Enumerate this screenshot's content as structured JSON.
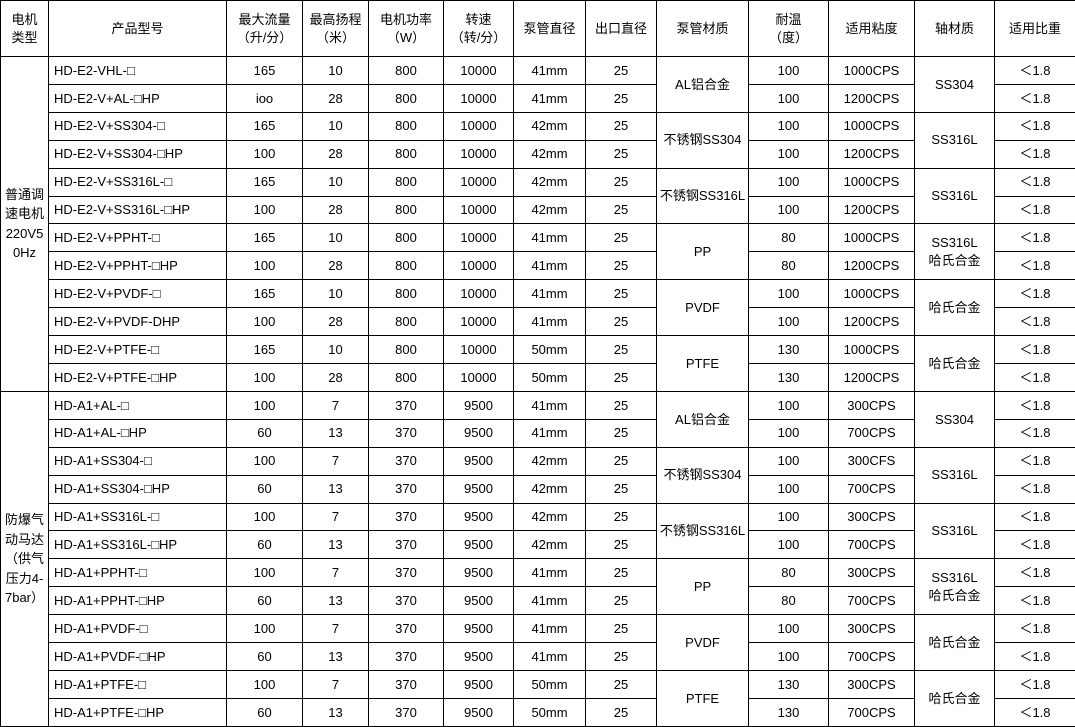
{
  "table": {
    "headers": [
      "电机\n类型",
      "产品型号",
      "最大流量\n（升/分）",
      "最高扬程\n（米）",
      "电机功率\n（W）",
      "转速\n（转/分）",
      "泵管直径",
      "出口直径",
      "泵管材质",
      "耐温\n（度）",
      "适用粘度",
      "轴材质",
      "适用比重"
    ],
    "rows": [
      [
        {
          "t": "普通调速电机220V50Hz",
          "rs": 12
        },
        {
          "t": "HD-E2-VHL-□",
          "a": "l"
        },
        {
          "t": "165"
        },
        {
          "t": "10"
        },
        {
          "t": "800"
        },
        {
          "t": "10000"
        },
        {
          "t": "41mm"
        },
        {
          "t": "25"
        },
        {
          "t": "AL铝合金",
          "rs": 2
        },
        {
          "t": "100"
        },
        {
          "t": "1000CPS"
        },
        {
          "t": "SS304",
          "rs": 2
        },
        {
          "t": "＜1.8"
        }
      ],
      [
        {
          "t": "HD-E2-V+AL-□HP",
          "a": "l"
        },
        {
          "t": "ioo"
        },
        {
          "t": "28"
        },
        {
          "t": "800"
        },
        {
          "t": "10000"
        },
        {
          "t": "41mm"
        },
        {
          "t": "25"
        },
        {
          "t": "100"
        },
        {
          "t": "1200CPS"
        },
        {
          "t": "＜1.8"
        }
      ],
      [
        {
          "t": "HD-E2-V+SS304-□",
          "a": "l"
        },
        {
          "t": "165"
        },
        {
          "t": "10"
        },
        {
          "t": "800"
        },
        {
          "t": "10000"
        },
        {
          "t": "42mm"
        },
        {
          "t": "25"
        },
        {
          "t": "不锈钢SS304",
          "rs": 2
        },
        {
          "t": "100"
        },
        {
          "t": "1000CPS"
        },
        {
          "t": "SS316L",
          "rs": 2
        },
        {
          "t": "＜1.8"
        }
      ],
      [
        {
          "t": "HD-E2-V+SS304-□HP",
          "a": "l"
        },
        {
          "t": "100"
        },
        {
          "t": "28"
        },
        {
          "t": "800"
        },
        {
          "t": "10000"
        },
        {
          "t": "42mm"
        },
        {
          "t": "25"
        },
        {
          "t": "100"
        },
        {
          "t": "1200CPS"
        },
        {
          "t": "＜1.8"
        }
      ],
      [
        {
          "t": "HD-E2-V+SS316L-□",
          "a": "l"
        },
        {
          "t": "165"
        },
        {
          "t": "10"
        },
        {
          "t": "800"
        },
        {
          "t": "10000"
        },
        {
          "t": "42mm"
        },
        {
          "t": "25"
        },
        {
          "t": "不锈钢SS316L",
          "rs": 2
        },
        {
          "t": "100"
        },
        {
          "t": "1000CPS"
        },
        {
          "t": "SS316L",
          "rs": 2
        },
        {
          "t": "＜1.8"
        }
      ],
      [
        {
          "t": "HD-E2-V+SS316L-□HP",
          "a": "l"
        },
        {
          "t": "100"
        },
        {
          "t": "28"
        },
        {
          "t": "800"
        },
        {
          "t": "10000"
        },
        {
          "t": "42mm"
        },
        {
          "t": "25"
        },
        {
          "t": "100"
        },
        {
          "t": "1200CPS"
        },
        {
          "t": "＜1.8"
        }
      ],
      [
        {
          "t": "HD-E2-V+PPHT-□",
          "a": "l"
        },
        {
          "t": "165"
        },
        {
          "t": "10"
        },
        {
          "t": "800"
        },
        {
          "t": "10000"
        },
        {
          "t": "41mm"
        },
        {
          "t": "25"
        },
        {
          "t": "PP",
          "rs": 2
        },
        {
          "t": "80"
        },
        {
          "t": "1000CPS"
        },
        {
          "t": "SS316L\n哈氏合金",
          "rs": 2
        },
        {
          "t": "＜1.8"
        }
      ],
      [
        {
          "t": "HD-E2-V+PPHT-□HP",
          "a": "l"
        },
        {
          "t": "100"
        },
        {
          "t": "28"
        },
        {
          "t": "800"
        },
        {
          "t": "10000"
        },
        {
          "t": "41mm"
        },
        {
          "t": "25"
        },
        {
          "t": "80"
        },
        {
          "t": "1200CPS"
        },
        {
          "t": "＜1.8"
        }
      ],
      [
        {
          "t": "HD-E2-V+PVDF-□",
          "a": "l"
        },
        {
          "t": "165"
        },
        {
          "t": "10"
        },
        {
          "t": "800"
        },
        {
          "t": "10000"
        },
        {
          "t": "41mm"
        },
        {
          "t": "25"
        },
        {
          "t": "PVDF",
          "rs": 2
        },
        {
          "t": "100"
        },
        {
          "t": "1000CPS"
        },
        {
          "t": "哈氏合金",
          "rs": 2
        },
        {
          "t": "＜1.8"
        }
      ],
      [
        {
          "t": "HD-E2-V+PVDF-DHP",
          "a": "l"
        },
        {
          "t": "100"
        },
        {
          "t": "28"
        },
        {
          "t": "800"
        },
        {
          "t": "10000"
        },
        {
          "t": "41mm"
        },
        {
          "t": "25"
        },
        {
          "t": "100"
        },
        {
          "t": "1200CPS"
        },
        {
          "t": "＜1.8"
        }
      ],
      [
        {
          "t": "HD-E2-V+PTFE-□",
          "a": "l"
        },
        {
          "t": "165"
        },
        {
          "t": "10"
        },
        {
          "t": "800"
        },
        {
          "t": "10000"
        },
        {
          "t": "50mm"
        },
        {
          "t": "25"
        },
        {
          "t": "PTFE",
          "rs": 2
        },
        {
          "t": "130"
        },
        {
          "t": "1000CPS"
        },
        {
          "t": "哈氏合金",
          "rs": 2
        },
        {
          "t": "＜1.8"
        }
      ],
      [
        {
          "t": "HD-E2-V+PTFE-□HP",
          "a": "l"
        },
        {
          "t": "100"
        },
        {
          "t": "28"
        },
        {
          "t": "800"
        },
        {
          "t": "10000"
        },
        {
          "t": "50mm"
        },
        {
          "t": "25"
        },
        {
          "t": "130"
        },
        {
          "t": "1200CPS"
        },
        {
          "t": "＜1.8"
        }
      ],
      [
        {
          "t": "防爆气动马达（供气压力4-7bar）",
          "rs": 12
        },
        {
          "t": "HD-A1+AL-□",
          "a": "l"
        },
        {
          "t": "100"
        },
        {
          "t": "7"
        },
        {
          "t": "370"
        },
        {
          "t": "9500"
        },
        {
          "t": "41mm"
        },
        {
          "t": "25"
        },
        {
          "t": "AL铝合金",
          "rs": 2
        },
        {
          "t": "100"
        },
        {
          "t": "300CPS"
        },
        {
          "t": "SS304",
          "rs": 2
        },
        {
          "t": "＜1.8"
        }
      ],
      [
        {
          "t": "HD-A1+AL-□HP",
          "a": "l"
        },
        {
          "t": "60"
        },
        {
          "t": "13"
        },
        {
          "t": "370"
        },
        {
          "t": "9500"
        },
        {
          "t": "41mm"
        },
        {
          "t": "25"
        },
        {
          "t": "100"
        },
        {
          "t": "700CPS"
        },
        {
          "t": "＜1.8"
        }
      ],
      [
        {
          "t": "HD-A1+SS304-□",
          "a": "l"
        },
        {
          "t": "100"
        },
        {
          "t": "7"
        },
        {
          "t": "370"
        },
        {
          "t": "9500"
        },
        {
          "t": "42mm"
        },
        {
          "t": "25"
        },
        {
          "t": "不锈钢SS304",
          "rs": 2
        },
        {
          "t": "100"
        },
        {
          "t": "300CFS"
        },
        {
          "t": "SS316L",
          "rs": 2
        },
        {
          "t": "＜1.8"
        }
      ],
      [
        {
          "t": "HD-A1+SS304-□HP",
          "a": "l"
        },
        {
          "t": "60"
        },
        {
          "t": "13"
        },
        {
          "t": "370"
        },
        {
          "t": "9500"
        },
        {
          "t": "42mm"
        },
        {
          "t": "25"
        },
        {
          "t": "100"
        },
        {
          "t": "700CPS"
        },
        {
          "t": "＜1.8"
        }
      ],
      [
        {
          "t": "HD-A1+SS316L-□",
          "a": "l"
        },
        {
          "t": "100"
        },
        {
          "t": "7"
        },
        {
          "t": "370"
        },
        {
          "t": "9500"
        },
        {
          "t": "42mm"
        },
        {
          "t": "25"
        },
        {
          "t": "不锈钢SS316L",
          "rs": 2
        },
        {
          "t": "100"
        },
        {
          "t": "300CPS"
        },
        {
          "t": "SS316L",
          "rs": 2
        },
        {
          "t": "＜1.8"
        }
      ],
      [
        {
          "t": "HD-A1+SS316L-□HP",
          "a": "l"
        },
        {
          "t": "60"
        },
        {
          "t": "13"
        },
        {
          "t": "370"
        },
        {
          "t": "9500"
        },
        {
          "t": "42mm"
        },
        {
          "t": "25"
        },
        {
          "t": "100"
        },
        {
          "t": "700CPS"
        },
        {
          "t": "＜1.8"
        }
      ],
      [
        {
          "t": "HD-A1+PPHT-□",
          "a": "l"
        },
        {
          "t": "100"
        },
        {
          "t": "7"
        },
        {
          "t": "370"
        },
        {
          "t": "9500"
        },
        {
          "t": "41mm"
        },
        {
          "t": "25"
        },
        {
          "t": "PP",
          "rs": 2
        },
        {
          "t": "80"
        },
        {
          "t": "300CPS"
        },
        {
          "t": "SS316L\n哈氏合金",
          "rs": 2
        },
        {
          "t": "＜1.8"
        }
      ],
      [
        {
          "t": "HD-A1+PPHT-□HP",
          "a": "l"
        },
        {
          "t": "60"
        },
        {
          "t": "13"
        },
        {
          "t": "370"
        },
        {
          "t": "9500"
        },
        {
          "t": "41mm"
        },
        {
          "t": "25"
        },
        {
          "t": "80"
        },
        {
          "t": "700CPS"
        },
        {
          "t": "＜1.8"
        }
      ],
      [
        {
          "t": "HD-A1+PVDF-□",
          "a": "l"
        },
        {
          "t": "100"
        },
        {
          "t": "7"
        },
        {
          "t": "370"
        },
        {
          "t": "9500"
        },
        {
          "t": "41mm"
        },
        {
          "t": "25"
        },
        {
          "t": "PVDF",
          "rs": 2
        },
        {
          "t": "100"
        },
        {
          "t": "300CPS"
        },
        {
          "t": "哈氏合金",
          "rs": 2
        },
        {
          "t": "＜1.8"
        }
      ],
      [
        {
          "t": "HD-A1+PVDF-□HP",
          "a": "l"
        },
        {
          "t": "60"
        },
        {
          "t": "13"
        },
        {
          "t": "370"
        },
        {
          "t": "9500"
        },
        {
          "t": "41mm"
        },
        {
          "t": "25"
        },
        {
          "t": "100"
        },
        {
          "t": "700CPS"
        },
        {
          "t": "＜1.8"
        }
      ],
      [
        {
          "t": "HD-A1+PTFE-□",
          "a": "l"
        },
        {
          "t": "100"
        },
        {
          "t": "7"
        },
        {
          "t": "370"
        },
        {
          "t": "9500"
        },
        {
          "t": "50mm"
        },
        {
          "t": "25"
        },
        {
          "t": "PTFE",
          "rs": 2
        },
        {
          "t": "130"
        },
        {
          "t": "300CPS"
        },
        {
          "t": "哈氏合金",
          "rs": 2
        },
        {
          "t": "＜1.8"
        }
      ],
      [
        {
          "t": "HD-A1+PTFE-□HP",
          "a": "l"
        },
        {
          "t": "60"
        },
        {
          "t": "13"
        },
        {
          "t": "370"
        },
        {
          "t": "9500"
        },
        {
          "t": "50mm"
        },
        {
          "t": "25"
        },
        {
          "t": "130"
        },
        {
          "t": "700CPS"
        },
        {
          "t": "＜1.8"
        }
      ]
    ]
  },
  "colors": {
    "border": "#000000",
    "text": "#000000",
    "background": "#ffffff"
  }
}
